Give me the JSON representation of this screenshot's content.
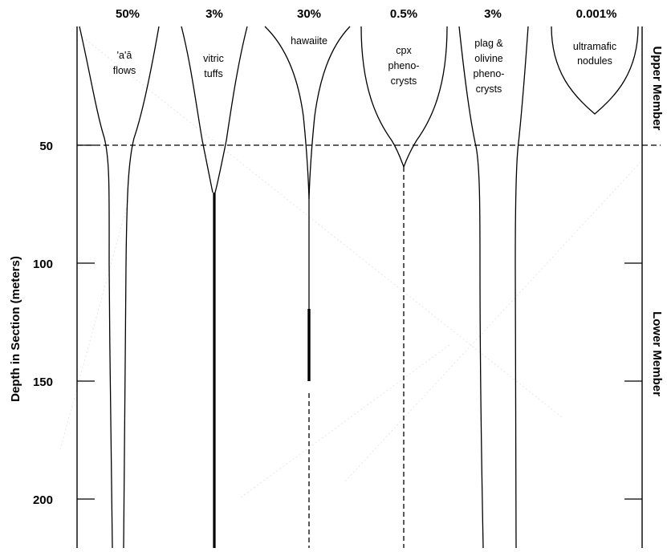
{
  "axis": {
    "y_title": "Depth in Section (meters)",
    "y_ticks": [
      "50",
      "100",
      "150",
      "200"
    ],
    "y_tick_values": [
      50,
      100,
      150,
      200
    ],
    "depth_range": [
      0,
      220
    ],
    "boundary_depth": 50
  },
  "members": {
    "upper": "Upper Member",
    "lower": "Lower Member"
  },
  "columns": [
    {
      "id": "aa-flows",
      "percent": "50%",
      "label": [
        "'a'ā",
        "flows"
      ]
    },
    {
      "id": "vitric-tuffs",
      "percent": "3%",
      "label": [
        "vitric",
        "tuffs"
      ]
    },
    {
      "id": "hawaiite",
      "percent": "30%",
      "label": [
        "hawaiite"
      ]
    },
    {
      "id": "cpx-phenocrysts",
      "percent": "0.5%",
      "label": [
        "cpx",
        "pheno-",
        "crysts"
      ]
    },
    {
      "id": "plag-olivine-phenocrysts",
      "percent": "3%",
      "label": [
        "plag &",
        "olivine",
        "pheno-",
        "crysts"
      ]
    },
    {
      "id": "ultramafic-nodules",
      "percent": "0.001%",
      "label": [
        "ultramafic",
        "nodules"
      ]
    }
  ],
  "colors": {
    "line": "#000000",
    "background": "#ffffff"
  }
}
